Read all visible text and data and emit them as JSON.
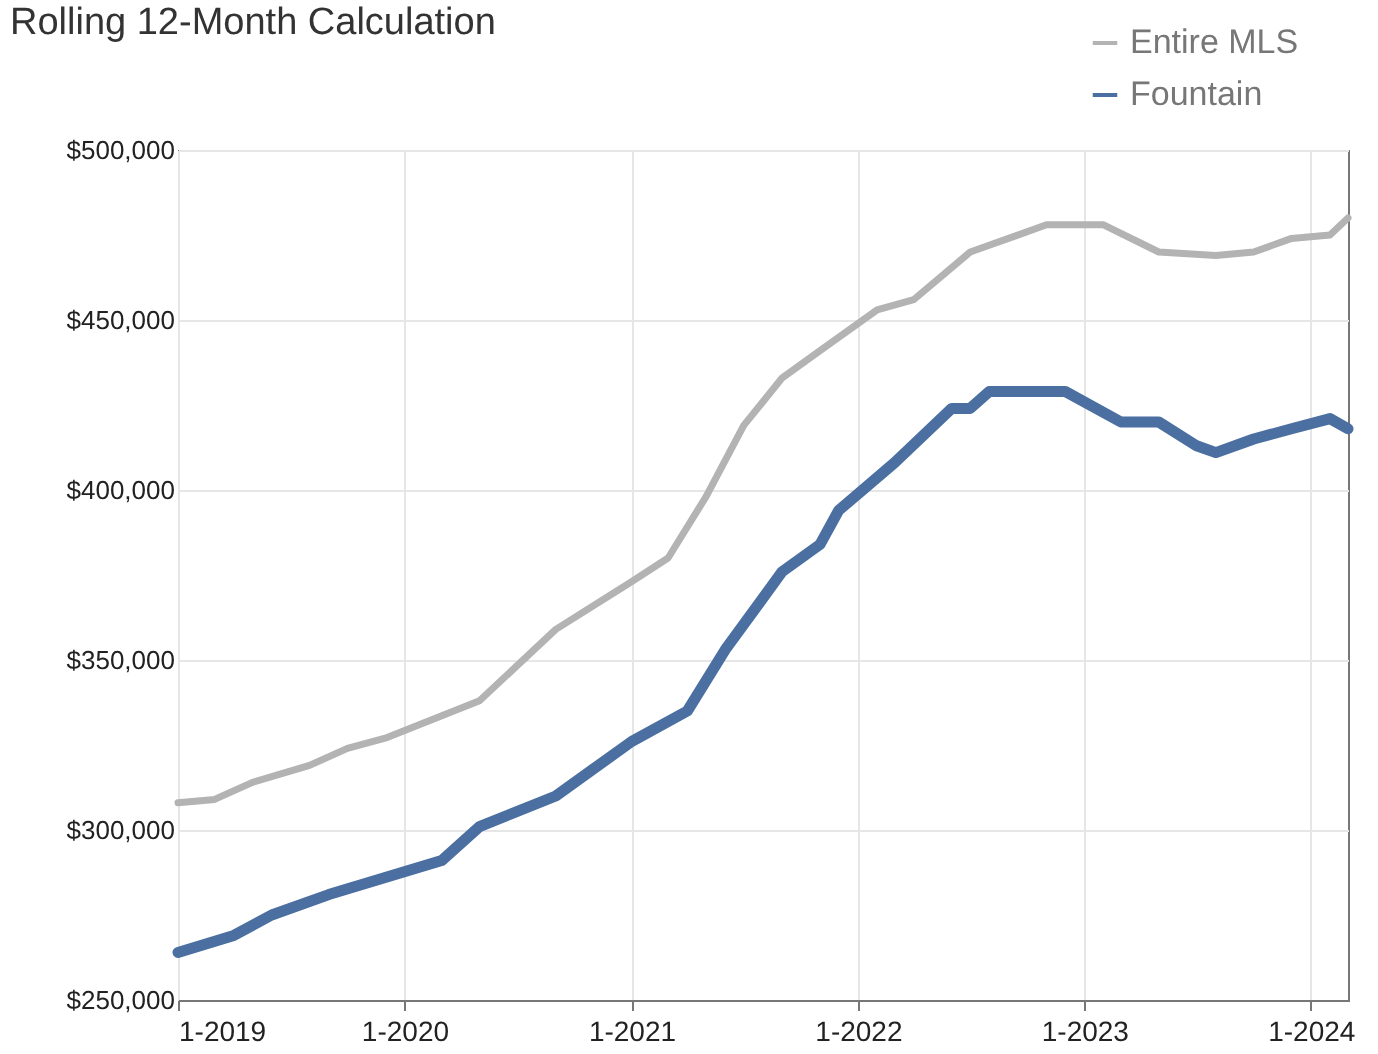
{
  "chart_data": {
    "type": "line",
    "title": "Rolling 12-Month Calculation",
    "xlim": [
      "2019-01",
      "2024-03"
    ],
    "xticks": [
      {
        "value": "2019-01",
        "label": "1-2019"
      },
      {
        "value": "2020-01",
        "label": "1-2020"
      },
      {
        "value": "2021-01",
        "label": "1-2021"
      },
      {
        "value": "2022-01",
        "label": "1-2022"
      },
      {
        "value": "2023-01",
        "label": "1-2023"
      },
      {
        "value": "2024-01",
        "label": "1-2024"
      }
    ],
    "ylim": [
      250000,
      500000
    ],
    "yticks": [
      {
        "value": 250000,
        "label": "$250,000"
      },
      {
        "value": 300000,
        "label": "$300,000"
      },
      {
        "value": 350000,
        "label": "$350,000"
      },
      {
        "value": 400000,
        "label": "$400,000"
      },
      {
        "value": 450000,
        "label": "$450,000"
      },
      {
        "value": 500000,
        "label": "$500,000"
      }
    ],
    "grid": true,
    "legend": "top right",
    "series": [
      {
        "name": "Entire MLS",
        "color": "#b3b3b3",
        "x": [
          "2019-01",
          "2019-03",
          "2019-05",
          "2019-08",
          "2019-10",
          "2019-12",
          "2020-05",
          "2020-09",
          "2021-01",
          "2021-03",
          "2021-05",
          "2021-07",
          "2021-09",
          "2021-11",
          "2022-02",
          "2022-04",
          "2022-07",
          "2022-11",
          "2023-02",
          "2023-05",
          "2023-08",
          "2023-10",
          "2023-12",
          "2024-02",
          "2024-03"
        ],
        "values": [
          308000,
          309000,
          314000,
          319000,
          324000,
          327000,
          338000,
          359000,
          373000,
          380000,
          398000,
          419000,
          433000,
          441000,
          453000,
          456000,
          470000,
          478000,
          478000,
          470000,
          469000,
          470000,
          474000,
          475000,
          480000
        ]
      },
      {
        "name": "Fountain",
        "color": "#4a6fa0",
        "x": [
          "2019-01",
          "2019-04",
          "2019-06",
          "2019-09",
          "2019-12",
          "2020-03",
          "2020-05",
          "2020-09",
          "2020-11",
          "2021-01",
          "2021-04",
          "2021-06",
          "2021-09",
          "2021-11",
          "2021-12",
          "2022-03",
          "2022-06",
          "2022-07",
          "2022-08",
          "2022-12",
          "2023-03",
          "2023-05",
          "2023-07",
          "2023-08",
          "2023-10",
          "2023-12",
          "2024-02",
          "2024-03"
        ],
        "values": [
          264000,
          269000,
          275000,
          281000,
          286000,
          291000,
          301000,
          310000,
          318000,
          326000,
          335000,
          353000,
          376000,
          384000,
          394000,
          408000,
          424000,
          424000,
          429000,
          429000,
          420000,
          420000,
          413000,
          411000,
          415000,
          418000,
          421000,
          418000
        ]
      }
    ]
  }
}
